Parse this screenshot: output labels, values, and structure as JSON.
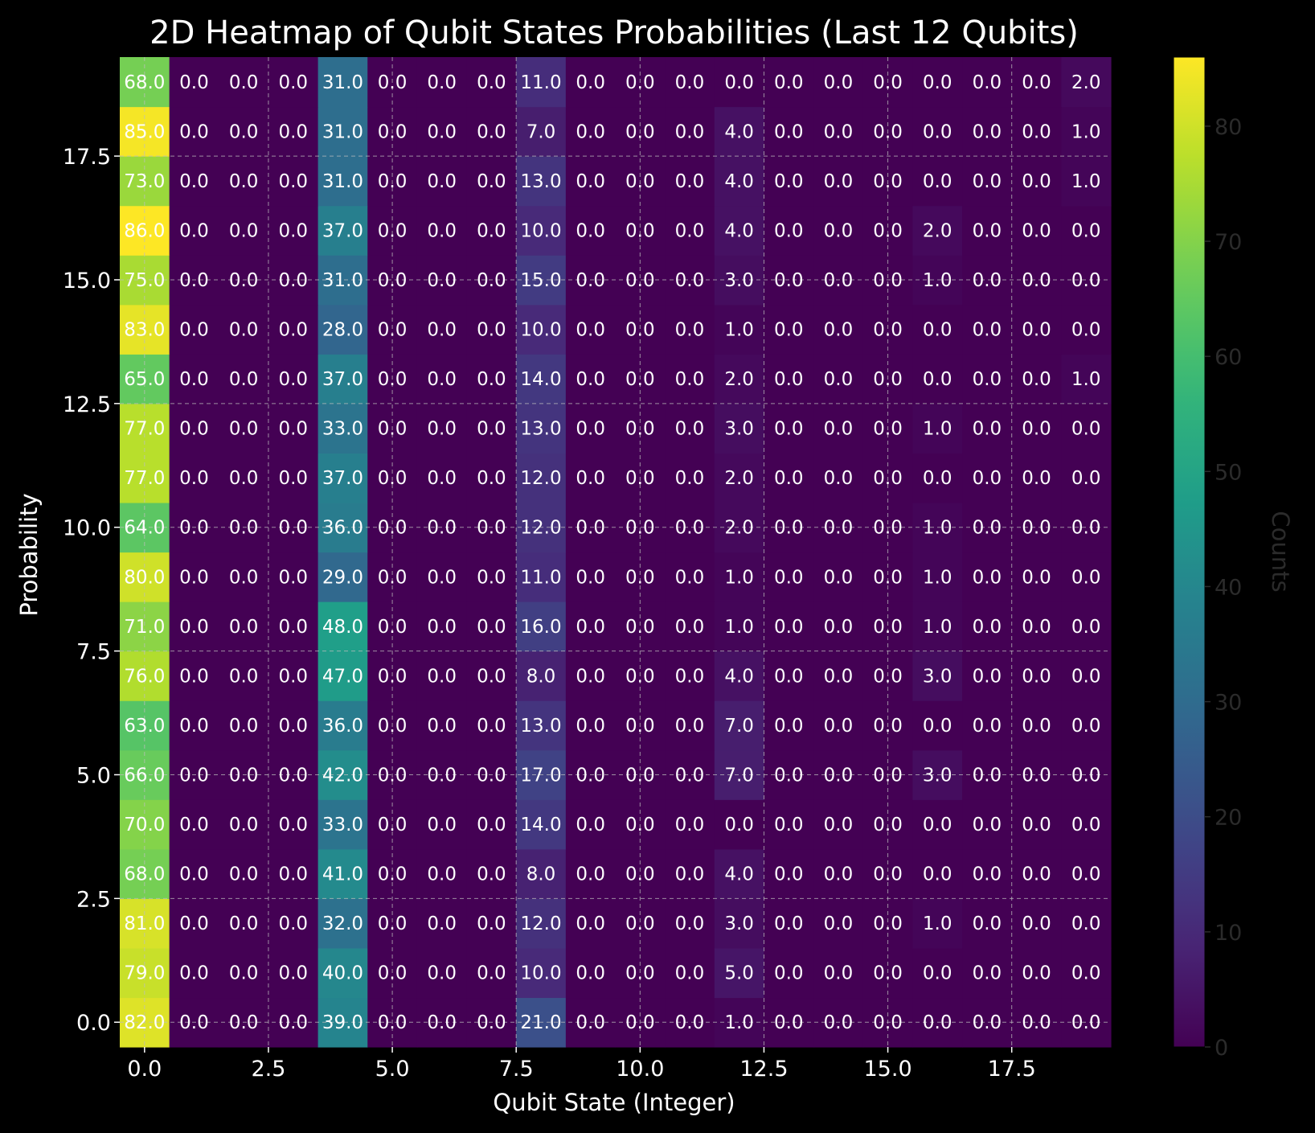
{
  "chart_data": {
    "type": "heatmap",
    "title": "2D Heatmap of Qubit States Probabilities (Last 12 Qubits)",
    "xlabel": "Qubit State (Integer)",
    "ylabel": "Probability",
    "colorbar_label": "Counts",
    "colormap": "viridis",
    "value_range": [
      0,
      86
    ],
    "xlim": [
      -0.5,
      19.5
    ],
    "ylim": [
      -0.5,
      19.5
    ],
    "x_ticks": [
      "0.0",
      "2.5",
      "5.0",
      "7.5",
      "10.0",
      "12.5",
      "15.0",
      "17.5"
    ],
    "y_ticks": [
      "0.0",
      "2.5",
      "5.0",
      "7.5",
      "10.0",
      "12.5",
      "15.0",
      "17.5"
    ],
    "colorbar_ticks": [
      "0",
      "10",
      "20",
      "30",
      "40",
      "50",
      "60",
      "70",
      "80"
    ],
    "grid": true,
    "columns": 20,
    "rows_bottom_to_top": [
      [
        82,
        0,
        0,
        0,
        39,
        0,
        0,
        0,
        21,
        0,
        0,
        0,
        1,
        0,
        0,
        0,
        0,
        0,
        0,
        0
      ],
      [
        79,
        0,
        0,
        0,
        40,
        0,
        0,
        0,
        10,
        0,
        0,
        0,
        5,
        0,
        0,
        0,
        0,
        0,
        0,
        0
      ],
      [
        81,
        0,
        0,
        0,
        32,
        0,
        0,
        0,
        12,
        0,
        0,
        0,
        3,
        0,
        0,
        0,
        1,
        0,
        0,
        0
      ],
      [
        68,
        0,
        0,
        0,
        41,
        0,
        0,
        0,
        8,
        0,
        0,
        0,
        4,
        0,
        0,
        0,
        0,
        0,
        0,
        0
      ],
      [
        70,
        0,
        0,
        0,
        33,
        0,
        0,
        0,
        14,
        0,
        0,
        0,
        0,
        0,
        0,
        0,
        0,
        0,
        0,
        0
      ],
      [
        66,
        0,
        0,
        0,
        42,
        0,
        0,
        0,
        17,
        0,
        0,
        0,
        7,
        0,
        0,
        0,
        3,
        0,
        0,
        0
      ],
      [
        63,
        0,
        0,
        0,
        36,
        0,
        0,
        0,
        13,
        0,
        0,
        0,
        7,
        0,
        0,
        0,
        0,
        0,
        0,
        0
      ],
      [
        76,
        0,
        0,
        0,
        47,
        0,
        0,
        0,
        8,
        0,
        0,
        0,
        4,
        0,
        0,
        0,
        3,
        0,
        0,
        0
      ],
      [
        71,
        0,
        0,
        0,
        48,
        0,
        0,
        0,
        16,
        0,
        0,
        0,
        1,
        0,
        0,
        0,
        1,
        0,
        0,
        0
      ],
      [
        80,
        0,
        0,
        0,
        29,
        0,
        0,
        0,
        11,
        0,
        0,
        0,
        1,
        0,
        0,
        0,
        1,
        0,
        0,
        0
      ],
      [
        64,
        0,
        0,
        0,
        36,
        0,
        0,
        0,
        12,
        0,
        0,
        0,
        2,
        0,
        0,
        0,
        1,
        0,
        0,
        0
      ],
      [
        77,
        0,
        0,
        0,
        37,
        0,
        0,
        0,
        12,
        0,
        0,
        0,
        2,
        0,
        0,
        0,
        0,
        0,
        0,
        0
      ],
      [
        77,
        0,
        0,
        0,
        33,
        0,
        0,
        0,
        13,
        0,
        0,
        0,
        3,
        0,
        0,
        0,
        1,
        0,
        0,
        0
      ],
      [
        65,
        0,
        0,
        0,
        37,
        0,
        0,
        0,
        14,
        0,
        0,
        0,
        2,
        0,
        0,
        0,
        0,
        0,
        0,
        1
      ],
      [
        83,
        0,
        0,
        0,
        28,
        0,
        0,
        0,
        10,
        0,
        0,
        0,
        1,
        0,
        0,
        0,
        0,
        0,
        0,
        0
      ],
      [
        75,
        0,
        0,
        0,
        31,
        0,
        0,
        0,
        15,
        0,
        0,
        0,
        3,
        0,
        0,
        0,
        1,
        0,
        0,
        0
      ],
      [
        86,
        0,
        0,
        0,
        37,
        0,
        0,
        0,
        10,
        0,
        0,
        0,
        4,
        0,
        0,
        0,
        2,
        0,
        0,
        0
      ],
      [
        73,
        0,
        0,
        0,
        31,
        0,
        0,
        0,
        13,
        0,
        0,
        0,
        4,
        0,
        0,
        0,
        0,
        0,
        0,
        1
      ],
      [
        85,
        0,
        0,
        0,
        31,
        0,
        0,
        0,
        7,
        0,
        0,
        0,
        4,
        0,
        0,
        0,
        0,
        0,
        0,
        1
      ],
      [
        68,
        0,
        0,
        0,
        31,
        0,
        0,
        0,
        11,
        0,
        0,
        0,
        0,
        0,
        0,
        0,
        0,
        0,
        0,
        2
      ]
    ]
  }
}
